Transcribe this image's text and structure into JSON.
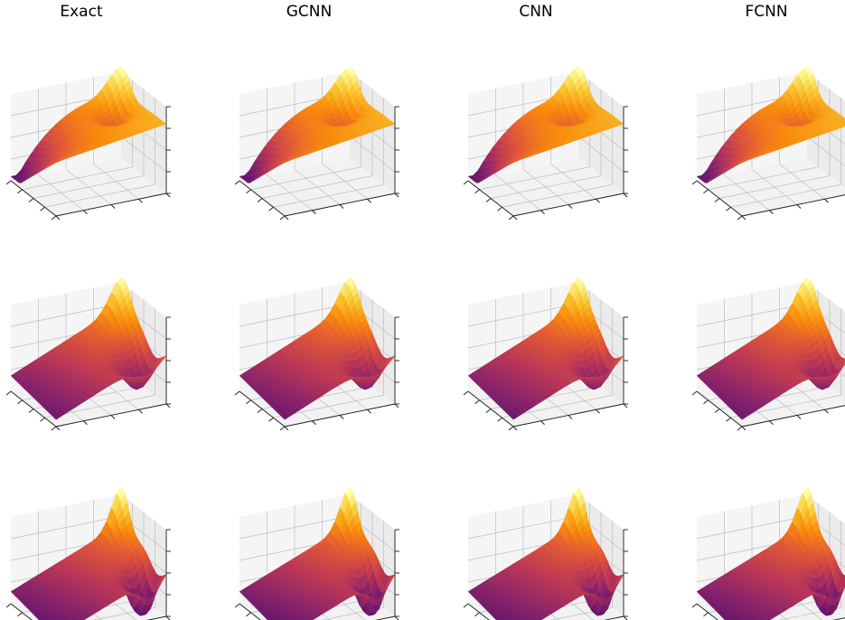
{
  "figure": {
    "columns": [
      "Exact",
      "GCNN",
      "CNN",
      "FCNN"
    ]
  },
  "colors": {
    "colormap": "inferno",
    "pane": "#f2f2f2",
    "grid": "#bdbdbd",
    "axis": "#1a1a1a"
  },
  "chart_data": {
    "type": "surface-grid",
    "layout": {
      "rows": 3,
      "cols": 4
    },
    "colormap": "inferno",
    "cmap_range_approx": [
      0.35,
      0.98
    ],
    "grid": true,
    "tick_labels_shown": false,
    "rows": [
      {
        "row": 1,
        "shape": "surface high on the back plateau, sloping down to a dark valley at the front-left corner, small dip near the right side and a bright peak at the back-right corner",
        "colors": "mostly orange with dark purple at the front-left edge and magenta near the right dip"
      },
      {
        "row": 2,
        "shape": "surface rising diagonally from a low front-left corner to a bright peak at the back-right corner, with a deep dark purple trough at the front-right",
        "colors": "mostly magenta-pink with dark purple trough and yellow peak"
      },
      {
        "row": 3,
        "shape": "similar to row 2 but with a sharper, deeper trough near the front-right and a steeper peak at the back-right corner",
        "colors": "mostly pink-red with dark purple trough and yellow peak"
      }
    ],
    "series": [
      {
        "name": "Exact"
      },
      {
        "name": "GCNN"
      },
      {
        "name": "CNN"
      },
      {
        "name": "FCNN"
      }
    ]
  }
}
